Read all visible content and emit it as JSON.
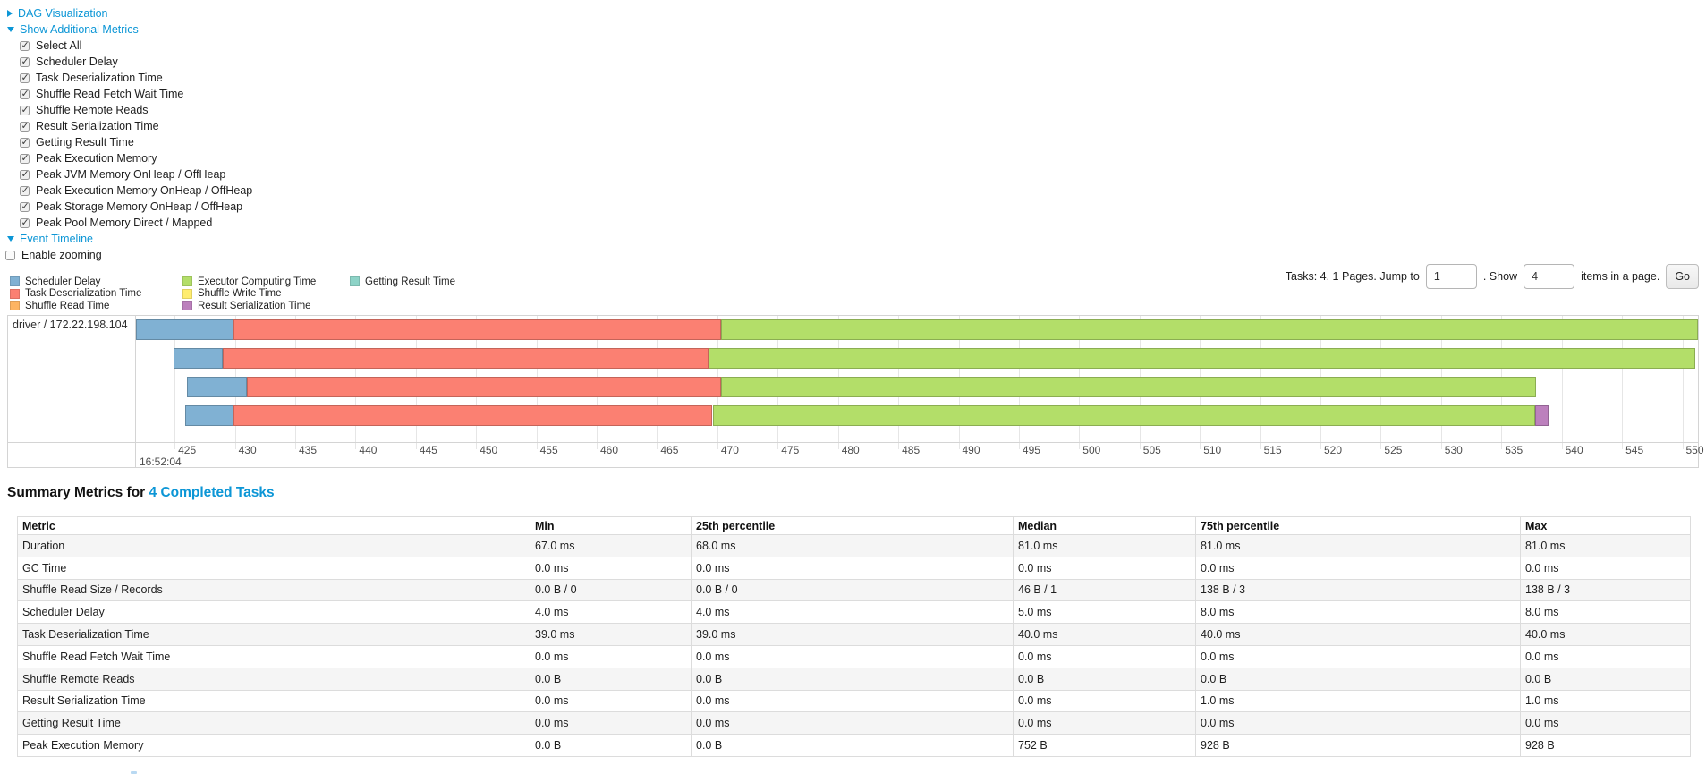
{
  "colors": {
    "scheduler_delay": "#80B1D3",
    "task_deserialization": "#FB8072",
    "shuffle_read": "#FDB462",
    "executor_computing": "#B3DE69",
    "shuffle_write": "#FFED6F",
    "result_serialization": "#BC80BD",
    "getting_result": "#8DD3C7",
    "link": "#0c96d6"
  },
  "toggles": {
    "dag": "DAG Visualization",
    "metrics": "Show Additional Metrics",
    "event_timeline": "Event Timeline",
    "enable_zooming": "Enable zooming",
    "enable_zooming_checked": false,
    "metric_checkboxes_checked": true
  },
  "metric_checkboxes": [
    "Select All",
    "Scheduler Delay",
    "Task Deserialization Time",
    "Shuffle Read Fetch Wait Time",
    "Shuffle Remote Reads",
    "Result Serialization Time",
    "Getting Result Time",
    "Peak Execution Memory",
    "Peak JVM Memory OnHeap / OffHeap",
    "Peak Execution Memory OnHeap / OffHeap",
    "Peak Storage Memory OnHeap / OffHeap",
    "Peak Pool Memory Direct / Mapped"
  ],
  "legend": {
    "columns": [
      [
        {
          "label": "Scheduler Delay",
          "key": "scheduler_delay"
        },
        {
          "label": "Task Deserialization Time",
          "key": "task_deserialization"
        },
        {
          "label": "Shuffle Read Time",
          "key": "shuffle_read"
        }
      ],
      [
        {
          "label": "Executor Computing Time",
          "key": "executor_computing"
        },
        {
          "label": "Shuffle Write Time",
          "key": "shuffle_write"
        },
        {
          "label": "Result Serialization Time",
          "key": "result_serialization"
        }
      ],
      [
        {
          "label": "Getting Result Time",
          "key": "getting_result"
        }
      ]
    ]
  },
  "pagination": {
    "tasks_text": "Tasks: 4. 1 Pages. Jump to",
    "jump_value": "1",
    "show_label": ". Show",
    "show_value": "4",
    "items_label": "items in a page.",
    "go_label": "Go"
  },
  "timeline": {
    "group_label": "driver / 172.22.198.104",
    "axis": {
      "min_ms": 421.8,
      "max_ms": 551.3,
      "tick_start": 425,
      "tick_end": 550,
      "tick_step": 5,
      "start_time_label": "16:52:04"
    },
    "tasks": [
      {
        "segments": [
          {
            "key": "scheduler_delay",
            "start": 421.8,
            "end": 429.9
          },
          {
            "key": "task_deserialization",
            "start": 429.9,
            "end": 470.3
          },
          {
            "key": "executor_computing",
            "start": 470.3,
            "end": 551.3
          }
        ]
      },
      {
        "segments": [
          {
            "key": "scheduler_delay",
            "start": 424.9,
            "end": 429.0
          },
          {
            "key": "task_deserialization",
            "start": 429.0,
            "end": 469.3
          },
          {
            "key": "executor_computing",
            "start": 469.3,
            "end": 551.1
          }
        ]
      },
      {
        "segments": [
          {
            "key": "scheduler_delay",
            "start": 426.0,
            "end": 431.0
          },
          {
            "key": "task_deserialization",
            "start": 431.0,
            "end": 470.3
          },
          {
            "key": "executor_computing",
            "start": 470.3,
            "end": 537.9
          }
        ]
      },
      {
        "segments": [
          {
            "key": "scheduler_delay",
            "start": 425.9,
            "end": 429.9
          },
          {
            "key": "task_deserialization",
            "start": 429.9,
            "end": 469.6
          },
          {
            "key": "executor_computing",
            "start": 469.6,
            "end": 537.8
          },
          {
            "key": "result_serialization",
            "start": 537.8,
            "end": 538.9
          }
        ]
      }
    ]
  },
  "summary": {
    "title_prefix": "Summary Metrics for",
    "title_link": "4 Completed Tasks",
    "columns": [
      "Metric",
      "Min",
      "25th percentile",
      "Median",
      "75th percentile",
      "Max"
    ],
    "rows": [
      {
        "metric": "Duration",
        "values": [
          "67.0 ms",
          "68.0 ms",
          "81.0 ms",
          "81.0 ms",
          "81.0 ms"
        ]
      },
      {
        "metric": "GC Time",
        "values": [
          "0.0 ms",
          "0.0 ms",
          "0.0 ms",
          "0.0 ms",
          "0.0 ms"
        ]
      },
      {
        "metric": "Shuffle Read Size / Records",
        "values": [
          "0.0 B / 0",
          "0.0 B / 0",
          "46 B / 1",
          "138 B / 3",
          "138 B / 3"
        ]
      },
      {
        "metric": "Scheduler Delay",
        "values": [
          "4.0 ms",
          "4.0 ms",
          "5.0 ms",
          "8.0 ms",
          "8.0 ms"
        ]
      },
      {
        "metric": "Task Deserialization Time",
        "values": [
          "39.0 ms",
          "39.0 ms",
          "40.0 ms",
          "40.0 ms",
          "40.0 ms"
        ]
      },
      {
        "metric": "Shuffle Read Fetch Wait Time",
        "values": [
          "0.0 ms",
          "0.0 ms",
          "0.0 ms",
          "0.0 ms",
          "0.0 ms"
        ]
      },
      {
        "metric": "Shuffle Remote Reads",
        "values": [
          "0.0 B",
          "0.0 B",
          "0.0 B",
          "0.0 B",
          "0.0 B"
        ]
      },
      {
        "metric": "Result Serialization Time",
        "values": [
          "0.0 ms",
          "0.0 ms",
          "0.0 ms",
          "1.0 ms",
          "1.0 ms"
        ]
      },
      {
        "metric": "Getting Result Time",
        "values": [
          "0.0 ms",
          "0.0 ms",
          "0.0 ms",
          "0.0 ms",
          "0.0 ms"
        ]
      },
      {
        "metric": "Peak Execution Memory",
        "values": [
          "0.0 B",
          "0.0 B",
          "752 B",
          "928 B",
          "928 B"
        ]
      }
    ]
  }
}
